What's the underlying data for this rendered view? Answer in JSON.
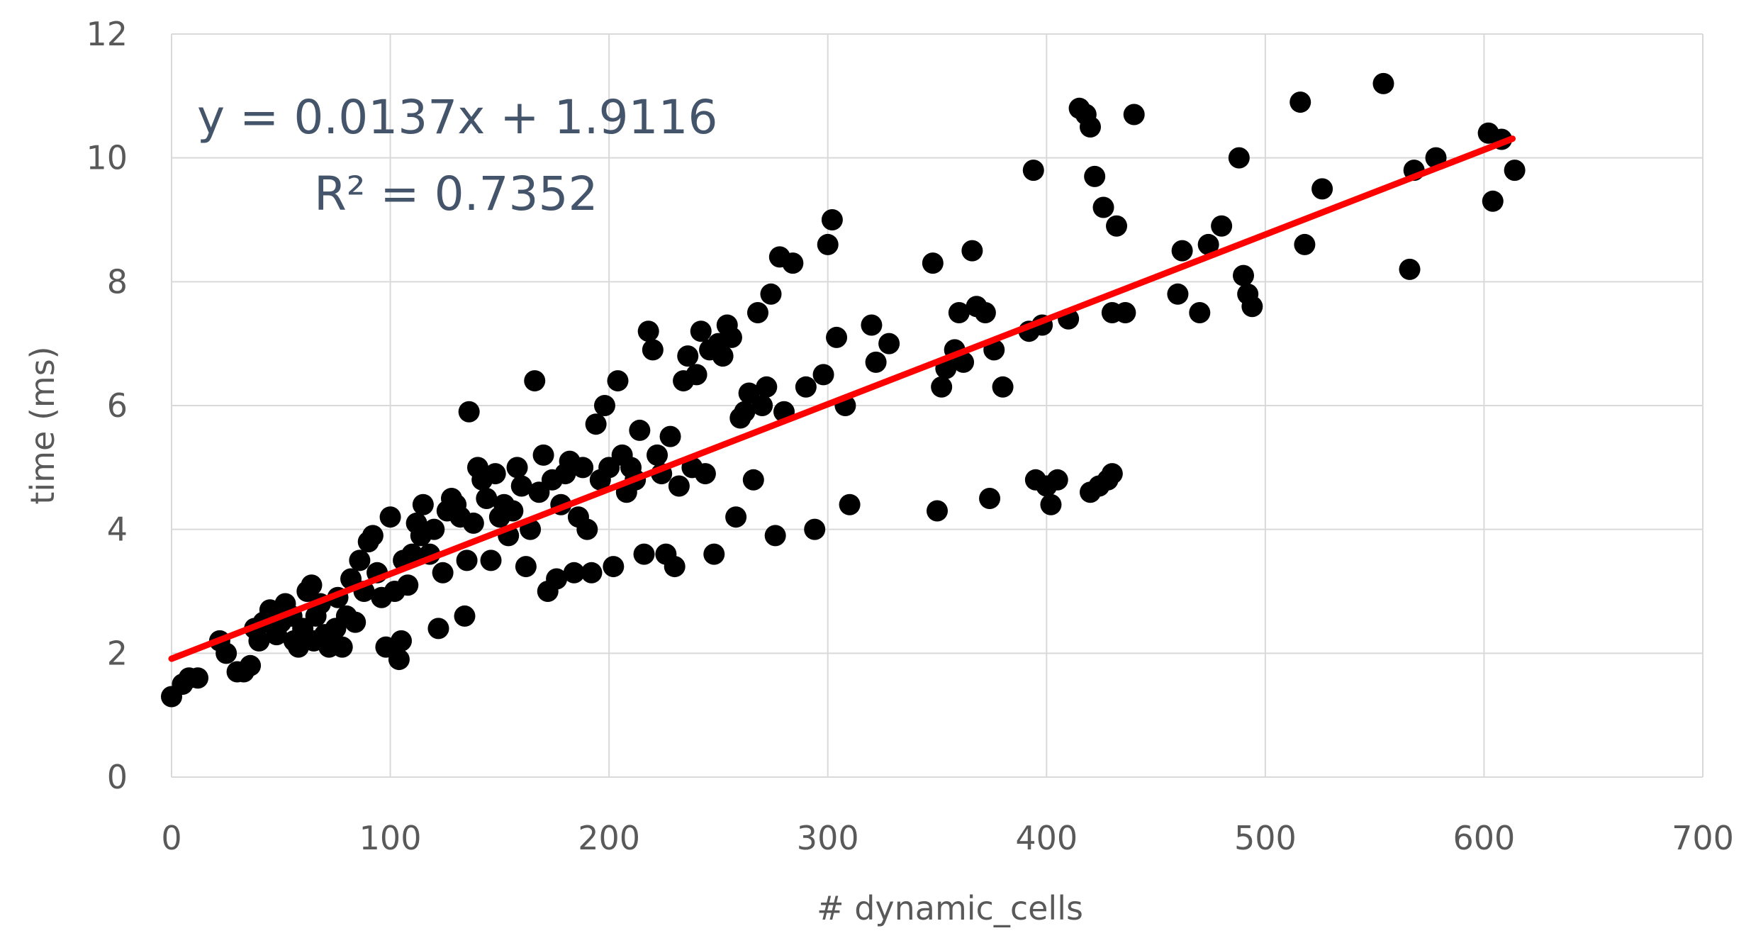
{
  "chart_data": {
    "type": "scatter",
    "title": "",
    "xlabel": "# dynamic_cells",
    "ylabel": "time (ms)",
    "xlim": [
      0,
      700
    ],
    "ylim": [
      0,
      12
    ],
    "xticks": [
      "0",
      "100",
      "200",
      "300",
      "400",
      "500",
      "600",
      "700"
    ],
    "yticks": [
      "0",
      "2",
      "4",
      "6",
      "8",
      "10",
      "12"
    ],
    "grid": true,
    "colors": {
      "points": "#000000",
      "trendline": "#ff0000",
      "grid": "#d9d9d9",
      "text": "#595959",
      "annotation": "#44546a"
    },
    "trendline": {
      "slope": 0.0137,
      "intercept": 1.9116,
      "x_range": [
        0,
        613
      ]
    },
    "annotations": {
      "equation": "y = 0.0137x + 1.9116",
      "r2": "R² = 0.7352"
    },
    "series": [
      {
        "points": [
          [
            0,
            1.3
          ],
          [
            5,
            1.5
          ],
          [
            8,
            1.6
          ],
          [
            12,
            1.6
          ],
          [
            22,
            2.2
          ],
          [
            25,
            2.0
          ],
          [
            30,
            1.7
          ],
          [
            33,
            1.7
          ],
          [
            36,
            1.8
          ],
          [
            38,
            2.4
          ],
          [
            40,
            2.2
          ],
          [
            42,
            2.5
          ],
          [
            45,
            2.7
          ],
          [
            48,
            2.3
          ],
          [
            50,
            2.5
          ],
          [
            52,
            2.8
          ],
          [
            55,
            2.6
          ],
          [
            56,
            2.2
          ],
          [
            58,
            2.1
          ],
          [
            60,
            2.4
          ],
          [
            62,
            3.0
          ],
          [
            64,
            3.1
          ],
          [
            65,
            2.2
          ],
          [
            66,
            2.6
          ],
          [
            68,
            2.8
          ],
          [
            70,
            2.3
          ],
          [
            72,
            2.1
          ],
          [
            75,
            2.4
          ],
          [
            76,
            2.9
          ],
          [
            78,
            2.1
          ],
          [
            80,
            2.6
          ],
          [
            82,
            3.2
          ],
          [
            84,
            2.5
          ],
          [
            86,
            3.5
          ],
          [
            88,
            3.0
          ],
          [
            90,
            3.8
          ],
          [
            92,
            3.9
          ],
          [
            94,
            3.3
          ],
          [
            96,
            2.9
          ],
          [
            98,
            2.1
          ],
          [
            100,
            4.2
          ],
          [
            102,
            3.0
          ],
          [
            104,
            1.9
          ],
          [
            105,
            2.2
          ],
          [
            106,
            3.5
          ],
          [
            108,
            3.1
          ],
          [
            110,
            3.6
          ],
          [
            112,
            4.1
          ],
          [
            114,
            3.9
          ],
          [
            115,
            4.4
          ],
          [
            118,
            3.6
          ],
          [
            120,
            4.0
          ],
          [
            122,
            2.4
          ],
          [
            124,
            3.3
          ],
          [
            126,
            4.3
          ],
          [
            128,
            4.5
          ],
          [
            130,
            4.4
          ],
          [
            132,
            4.2
          ],
          [
            134,
            2.6
          ],
          [
            135,
            3.5
          ],
          [
            136,
            5.9
          ],
          [
            138,
            4.1
          ],
          [
            140,
            5.0
          ],
          [
            142,
            4.8
          ],
          [
            144,
            4.5
          ],
          [
            146,
            3.5
          ],
          [
            148,
            4.9
          ],
          [
            150,
            4.2
          ],
          [
            152,
            4.4
          ],
          [
            154,
            3.9
          ],
          [
            156,
            4.3
          ],
          [
            158,
            5.0
          ],
          [
            160,
            4.7
          ],
          [
            162,
            3.4
          ],
          [
            164,
            4.0
          ],
          [
            166,
            6.4
          ],
          [
            168,
            4.6
          ],
          [
            170,
            5.2
          ],
          [
            172,
            3.0
          ],
          [
            174,
            4.8
          ],
          [
            176,
            3.2
          ],
          [
            178,
            4.4
          ],
          [
            180,
            4.9
          ],
          [
            182,
            5.1
          ],
          [
            184,
            3.3
          ],
          [
            186,
            4.2
          ],
          [
            188,
            5.0
          ],
          [
            190,
            4.0
          ],
          [
            192,
            3.3
          ],
          [
            194,
            5.7
          ],
          [
            196,
            4.8
          ],
          [
            198,
            6.0
          ],
          [
            200,
            5.0
          ],
          [
            202,
            3.4
          ],
          [
            204,
            6.4
          ],
          [
            206,
            5.2
          ],
          [
            208,
            4.6
          ],
          [
            210,
            5.0
          ],
          [
            212,
            4.8
          ],
          [
            214,
            5.6
          ],
          [
            216,
            3.6
          ],
          [
            218,
            7.2
          ],
          [
            220,
            6.9
          ],
          [
            222,
            5.2
          ],
          [
            224,
            4.9
          ],
          [
            226,
            3.6
          ],
          [
            228,
            5.5
          ],
          [
            230,
            3.4
          ],
          [
            232,
            4.7
          ],
          [
            234,
            6.4
          ],
          [
            236,
            6.8
          ],
          [
            238,
            5.0
          ],
          [
            240,
            6.5
          ],
          [
            242,
            7.2
          ],
          [
            244,
            4.9
          ],
          [
            246,
            6.9
          ],
          [
            248,
            3.6
          ],
          [
            250,
            7.0
          ],
          [
            252,
            6.8
          ],
          [
            254,
            7.3
          ],
          [
            256,
            7.1
          ],
          [
            258,
            4.2
          ],
          [
            260,
            5.8
          ],
          [
            262,
            5.9
          ],
          [
            264,
            6.2
          ],
          [
            266,
            4.8
          ],
          [
            268,
            7.5
          ],
          [
            270,
            6.0
          ],
          [
            272,
            6.3
          ],
          [
            274,
            7.8
          ],
          [
            276,
            3.9
          ],
          [
            278,
            8.4
          ],
          [
            280,
            5.9
          ],
          [
            284,
            8.3
          ],
          [
            290,
            6.3
          ],
          [
            294,
            4.0
          ],
          [
            298,
            6.5
          ],
          [
            300,
            8.6
          ],
          [
            302,
            9.0
          ],
          [
            304,
            7.1
          ],
          [
            308,
            6.0
          ],
          [
            310,
            4.4
          ],
          [
            320,
            7.3
          ],
          [
            322,
            6.7
          ],
          [
            328,
            7.0
          ],
          [
            348,
            8.3
          ],
          [
            350,
            4.3
          ],
          [
            352,
            6.3
          ],
          [
            354,
            6.6
          ],
          [
            358,
            6.9
          ],
          [
            360,
            7.5
          ],
          [
            362,
            6.7
          ],
          [
            366,
            8.5
          ],
          [
            368,
            7.6
          ],
          [
            372,
            7.5
          ],
          [
            374,
            4.5
          ],
          [
            376,
            6.9
          ],
          [
            380,
            6.3
          ],
          [
            392,
            7.2
          ],
          [
            394,
            9.8
          ],
          [
            395,
            4.8
          ],
          [
            398,
            7.3
          ],
          [
            400,
            4.7
          ],
          [
            402,
            4.4
          ],
          [
            405,
            4.8
          ],
          [
            410,
            7.4
          ],
          [
            415,
            10.8
          ],
          [
            418,
            10.7
          ],
          [
            420,
            10.5
          ],
          [
            420,
            4.6
          ],
          [
            422,
            9.7
          ],
          [
            424,
            4.7
          ],
          [
            426,
            9.2
          ],
          [
            428,
            4.8
          ],
          [
            430,
            4.9
          ],
          [
            430,
            7.5
          ],
          [
            432,
            8.9
          ],
          [
            436,
            7.5
          ],
          [
            440,
            10.7
          ],
          [
            460,
            7.8
          ],
          [
            462,
            8.5
          ],
          [
            470,
            7.5
          ],
          [
            474,
            8.6
          ],
          [
            480,
            8.9
          ],
          [
            488,
            10.0
          ],
          [
            490,
            8.1
          ],
          [
            492,
            7.8
          ],
          [
            494,
            7.6
          ],
          [
            516,
            10.9
          ],
          [
            518,
            8.6
          ],
          [
            526,
            9.5
          ],
          [
            554,
            11.2
          ],
          [
            566,
            8.2
          ],
          [
            568,
            9.8
          ],
          [
            578,
            10.0
          ],
          [
            602,
            10.4
          ],
          [
            604,
            9.3
          ],
          [
            608,
            10.3
          ],
          [
            614,
            9.8
          ]
        ]
      }
    ]
  }
}
